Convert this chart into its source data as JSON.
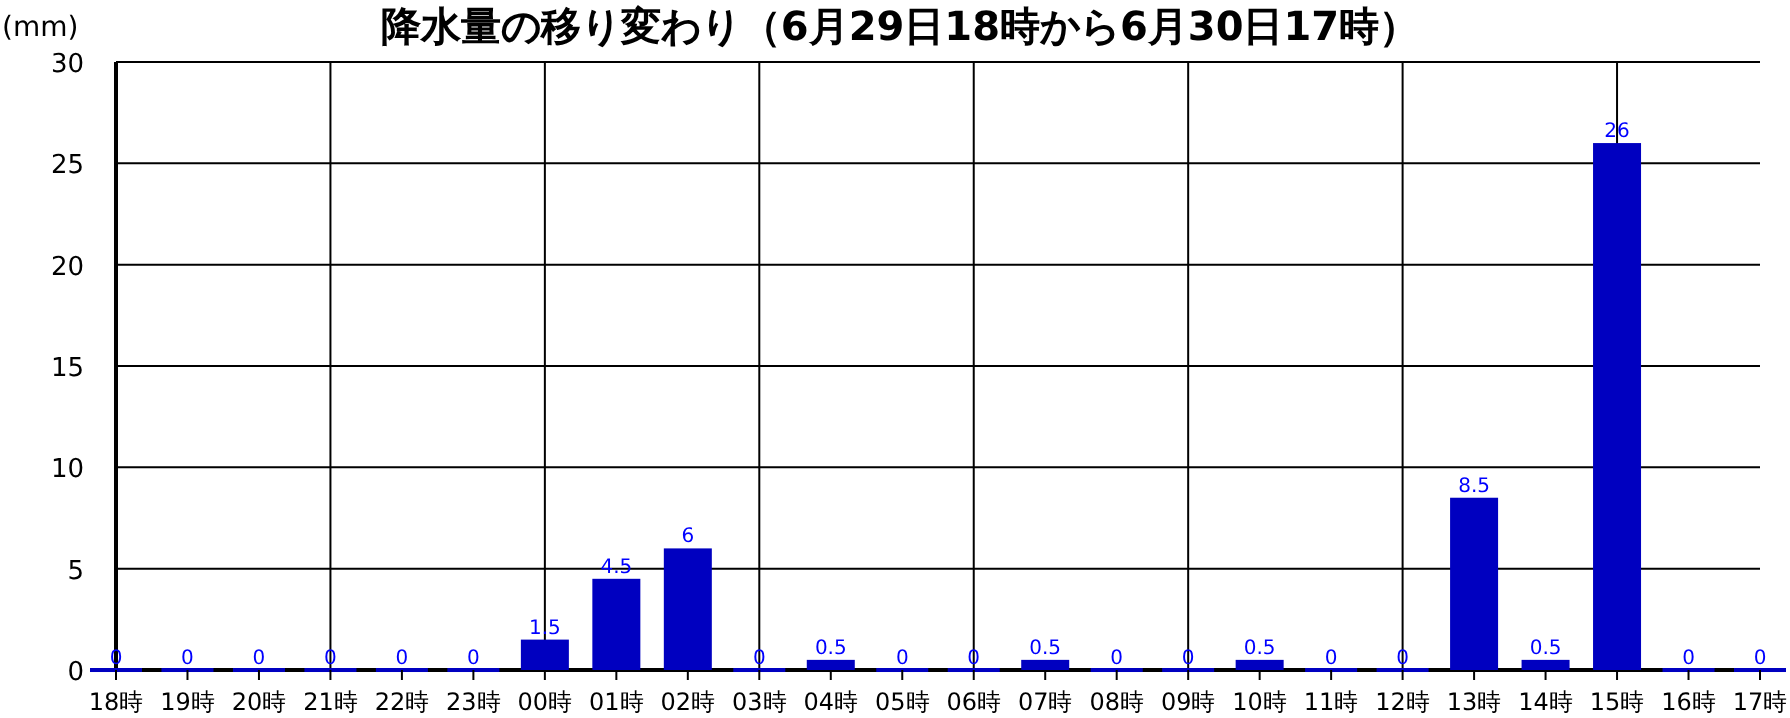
{
  "chart_data": {
    "type": "bar",
    "title": "降水量の移り変わり（6月29日18時から6月30日17時）",
    "ylabel": "(mm)",
    "categories": [
      "18時",
      "19時",
      "20時",
      "21時",
      "22時",
      "23時",
      "00時",
      "01時",
      "02時",
      "03時",
      "04時",
      "05時",
      "06時",
      "07時",
      "08時",
      "09時",
      "10時",
      "11時",
      "12時",
      "13時",
      "14時",
      "15時",
      "16時",
      "17時"
    ],
    "values": [
      0,
      0,
      0,
      0,
      0,
      0,
      1.5,
      4.5,
      6,
      0,
      0.5,
      0,
      0,
      0.5,
      0,
      0,
      0.5,
      0,
      0,
      8.5,
      0.5,
      26,
      0,
      0
    ],
    "color": "#0000c0",
    "ylim": [
      0,
      30
    ],
    "yticks": [
      0,
      5,
      10,
      15,
      20,
      25,
      30
    ],
    "grid": true,
    "data_labels": true
  }
}
